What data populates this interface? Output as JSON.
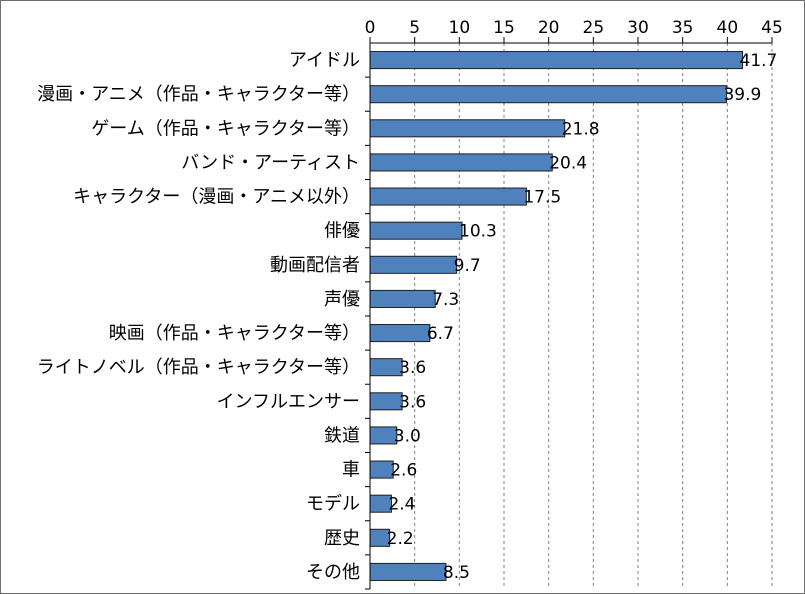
{
  "chart_data": {
    "type": "bar",
    "orientation": "horizontal",
    "title": "",
    "xlabel": "",
    "ylabel": "",
    "xlim": [
      0,
      45
    ],
    "x_ticks": [
      "0",
      "5",
      "10",
      "15",
      "20",
      "25",
      "30",
      "35",
      "40",
      "45"
    ],
    "x_axis_position": "top",
    "grid": true,
    "legend": "none",
    "categories": [
      "アイドル",
      "漫画・アニメ（作品・キャラクター等）",
      "ゲーム（作品・キャラクター等）",
      "バンド・アーティスト",
      "キャラクター（漫画・アニメ以外）",
      "俳優",
      "動画配信者",
      "声優",
      "映画（作品・キャラクター等）",
      "ライトノベル（作品・キャラクター等）",
      "インフルエンサー",
      "鉄道",
      "車",
      "モデル",
      "歴史",
      "その他"
    ],
    "values": [
      41.7,
      39.9,
      21.8,
      20.4,
      17.5,
      10.3,
      9.7,
      7.3,
      6.7,
      3.6,
      3.6,
      3.0,
      2.6,
      2.4,
      2.2,
      8.5
    ],
    "value_labels": [
      "41.7",
      "39.9",
      "21.8",
      "20.4",
      "17.5",
      "10.3",
      "9.7",
      "7.3",
      "6.7",
      "3.6",
      "3.6",
      "3.0",
      "2.6",
      "2.4",
      "2.2",
      "8.5"
    ],
    "bar_color": "#4f81bd",
    "bar_border_color": "#1f1f1f"
  }
}
